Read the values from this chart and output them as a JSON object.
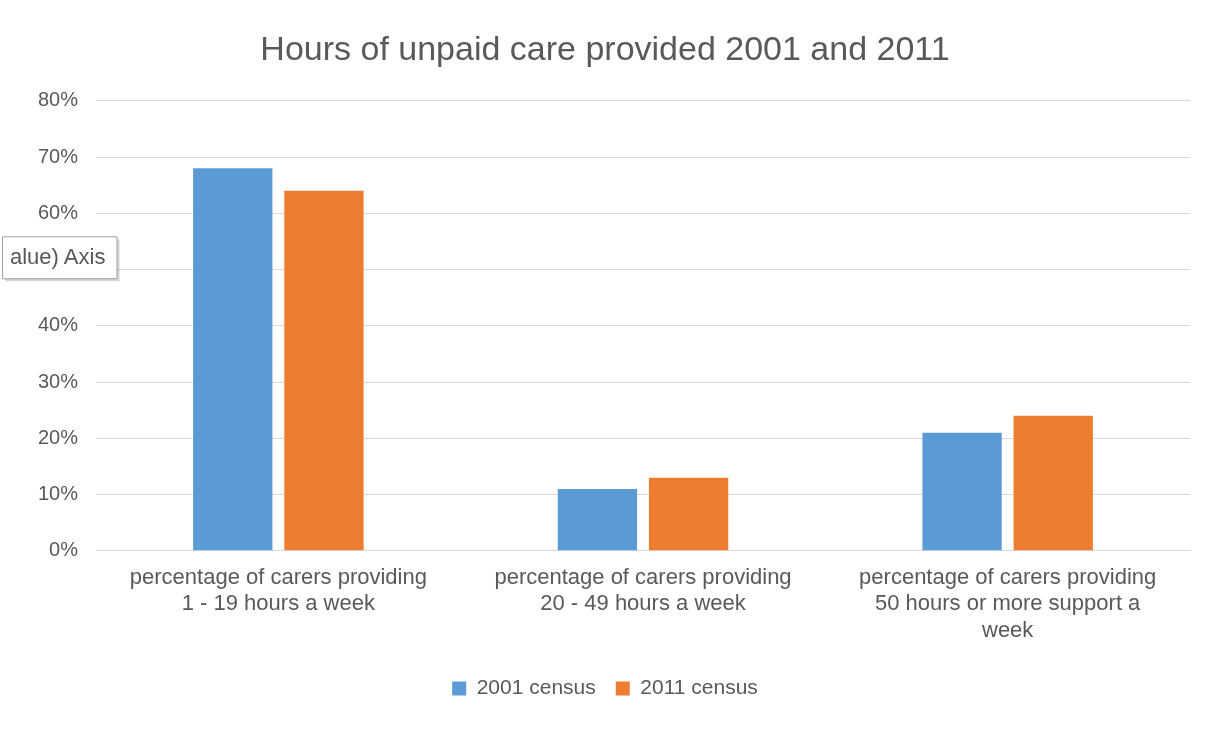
{
  "chart_data": {
    "type": "bar",
    "title": "Hours of unpaid care provided 2001 and 2011",
    "categories": [
      "percentage of carers providing 1 - 19 hours a week",
      "percentage of carers providing 20 - 49 hours a week",
      "percentage of carers providing 50 hours or more support a week"
    ],
    "series": [
      {
        "name": "2001 census",
        "color": "#5b9bd5",
        "values": [
          68,
          11,
          21
        ]
      },
      {
        "name": "2011 census",
        "color": "#ed7d31",
        "values": [
          64,
          13,
          24
        ]
      }
    ],
    "ylim": [
      0,
      80
    ],
    "yticks": [
      {
        "value": 0,
        "label": "0%"
      },
      {
        "value": 10,
        "label": "10%"
      },
      {
        "value": 20,
        "label": "20%"
      },
      {
        "value": 30,
        "label": "30%"
      },
      {
        "value": 40,
        "label": "40%"
      },
      {
        "value": 50,
        "label": null
      },
      {
        "value": 60,
        "label": "60%"
      },
      {
        "value": 70,
        "label": "70%"
      },
      {
        "value": 80,
        "label": "80%"
      }
    ],
    "grid": "y",
    "legend": "bottom",
    "annotations": [
      "alue) Axis"
    ]
  }
}
